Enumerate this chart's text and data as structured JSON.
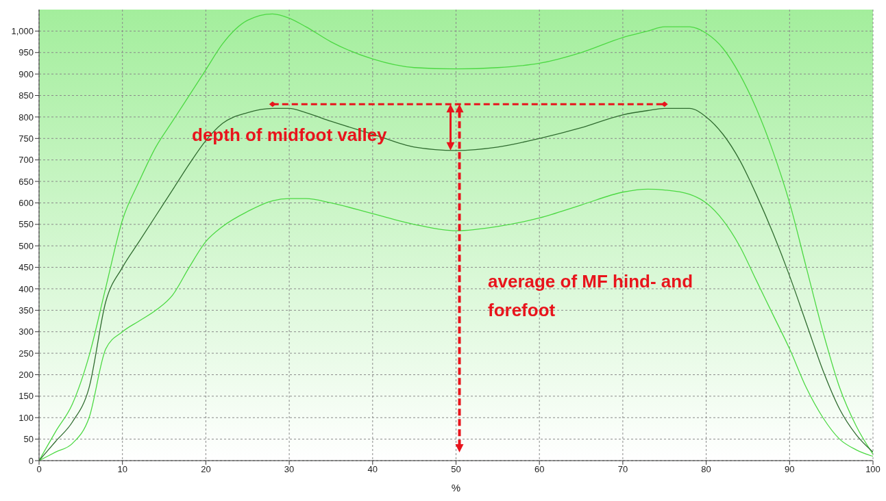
{
  "chart_data": {
    "type": "line",
    "xlabel": "%",
    "xlim": [
      0,
      100
    ],
    "xticks": [
      0,
      10,
      20,
      30,
      40,
      50,
      60,
      70,
      80,
      90,
      100
    ],
    "ylim": [
      0,
      1050
    ],
    "yticks": [
      0,
      50,
      100,
      150,
      200,
      250,
      300,
      350,
      400,
      450,
      500,
      550,
      600,
      650,
      700,
      750,
      800,
      850,
      900,
      950,
      {
        "value": 1000,
        "label": "1,000"
      }
    ],
    "grid": true,
    "marker": "none",
    "line_style": "solid",
    "x": [
      0,
      2,
      4,
      6,
      8,
      10,
      12,
      14,
      16,
      18,
      20,
      22,
      25,
      28,
      30,
      32,
      35,
      40,
      45,
      50,
      55,
      60,
      65,
      70,
      73,
      75,
      78,
      80,
      82,
      84,
      86,
      88,
      90,
      92,
      94,
      96,
      98,
      100
    ],
    "series": [
      {
        "color": "#4cd943",
        "values": [
          0,
          68,
          132,
          244,
          403,
          560,
          650,
          730,
          790,
          850,
          910,
          970,
          1025,
          1040,
          1030,
          1010,
          975,
          935,
          915,
          912,
          915,
          925,
          950,
          985,
          1000,
          1010,
          1010,
          995,
          960,
          900,
          820,
          720,
          600,
          450,
          300,
          170,
          80,
          15
        ]
      },
      {
        "color": "#2f6b2f",
        "values": [
          0,
          45,
          90,
          170,
          370,
          450,
          510,
          570,
          630,
          690,
          745,
          785,
          810,
          820,
          820,
          810,
          790,
          760,
          730,
          722,
          730,
          750,
          775,
          805,
          815,
          820,
          820,
          800,
          760,
          700,
          620,
          530,
          430,
          320,
          210,
          120,
          60,
          20
        ]
      },
      {
        "color": "#4cd943",
        "values": [
          0,
          20,
          40,
          100,
          260,
          300,
          325,
          350,
          385,
          450,
          510,
          545,
          580,
          605,
          610,
          610,
          600,
          575,
          550,
          535,
          545,
          565,
          595,
          625,
          632,
          630,
          620,
          600,
          560,
          500,
          420,
          340,
          260,
          170,
          100,
          50,
          25,
          10
        ]
      }
    ],
    "annotations": [
      "depth of midfoot valley",
      "average of MF hind- and forefoot"
    ]
  }
}
